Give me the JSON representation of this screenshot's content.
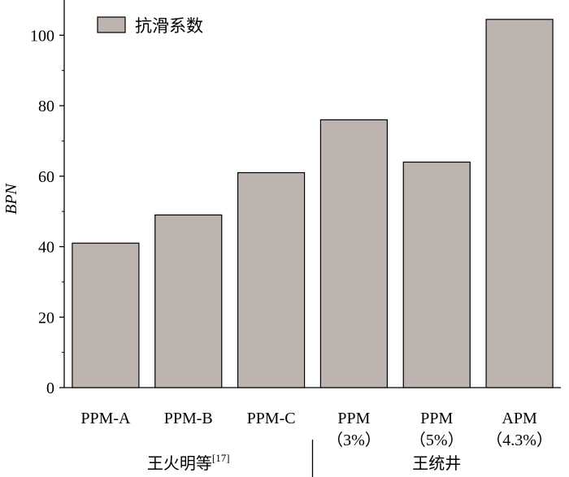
{
  "chart_data": {
    "type": "bar",
    "categories": [
      [
        "PPM-A"
      ],
      [
        "PPM-B"
      ],
      [
        "PPM-C"
      ],
      [
        "PPM",
        "（3%）"
      ],
      [
        "PPM",
        "（5%）"
      ],
      [
        "APM",
        "（4.3%）"
      ]
    ],
    "series": [
      {
        "name": "抗滑系数",
        "values": [
          41,
          49,
          61,
          76,
          64,
          104.5
        ]
      }
    ],
    "groups": [
      {
        "label": "王火明等",
        "superscript": "[17]",
        "from": 0,
        "to": 2
      },
      {
        "label": "王统井",
        "from": 3,
        "to": 5
      }
    ],
    "ylabel": "BPN",
    "xlabel": "",
    "ylim": [
      0,
      110
    ],
    "yticks": [
      0,
      20,
      40,
      60,
      80,
      100
    ],
    "grid": false,
    "legend_position": "top-left",
    "colors": {
      "bar_fill": "#bdb4b0",
      "bar_stroke": "#000000"
    }
  }
}
